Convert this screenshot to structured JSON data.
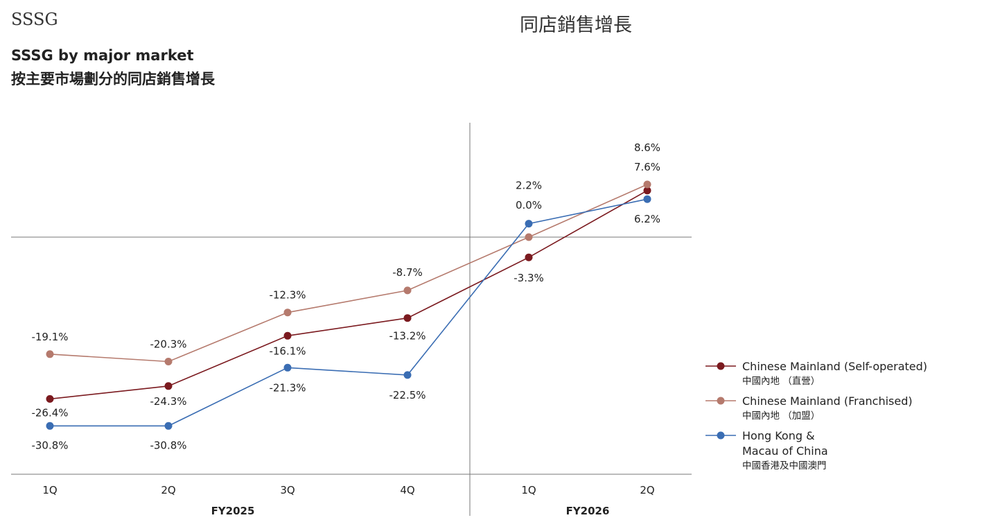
{
  "header": {
    "left": "SSSG",
    "right": "同店銷售增長"
  },
  "title": {
    "en": "SSSG by major market",
    "zh": "按主要市場劃分的同店銷售增長"
  },
  "chart_data": {
    "type": "line",
    "categories": [
      "1Q",
      "2Q",
      "3Q",
      "4Q",
      "1Q",
      "2Q"
    ],
    "groups": [
      {
        "label": "FY2025",
        "categories": [
          "1Q",
          "2Q",
          "3Q",
          "4Q"
        ]
      },
      {
        "label": "FY2026",
        "categories": [
          "1Q",
          "2Q"
        ]
      }
    ],
    "unit": "%",
    "ylim": [
      -35,
      14
    ],
    "series": [
      {
        "name": "Chinese Mainland (Self-operated)",
        "name_zh": "中國內地 （直營）",
        "color": "#7b1a1f",
        "values": [
          -26.4,
          -24.3,
          -16.1,
          -13.2,
          -3.3,
          7.6
        ],
        "labels": [
          "-26.4%",
          "-24.3%",
          "-16.1%",
          "-13.2%",
          "-3.3%",
          "7.6%"
        ]
      },
      {
        "name": "Chinese Mainland (Franchised)",
        "name_zh": "中國內地 （加盟）",
        "color": "#b57a6d",
        "values": [
          -19.1,
          -20.3,
          -12.3,
          -8.7,
          0.0,
          8.6
        ],
        "labels": [
          "-19.1%",
          "-20.3%",
          "-12.3%",
          "-8.7%",
          "0.0%",
          "8.6%"
        ]
      },
      {
        "name": "Hong Kong &\nMacau of China",
        "name_zh": "中國香港及中國澳門",
        "color": "#3a6db3",
        "values": [
          -30.8,
          -30.8,
          -21.3,
          -22.5,
          2.2,
          6.2
        ],
        "labels": [
          "-30.8%",
          "-30.8%",
          "-21.3%",
          "-22.5%",
          "2.2%",
          "6.2%"
        ]
      }
    ]
  }
}
